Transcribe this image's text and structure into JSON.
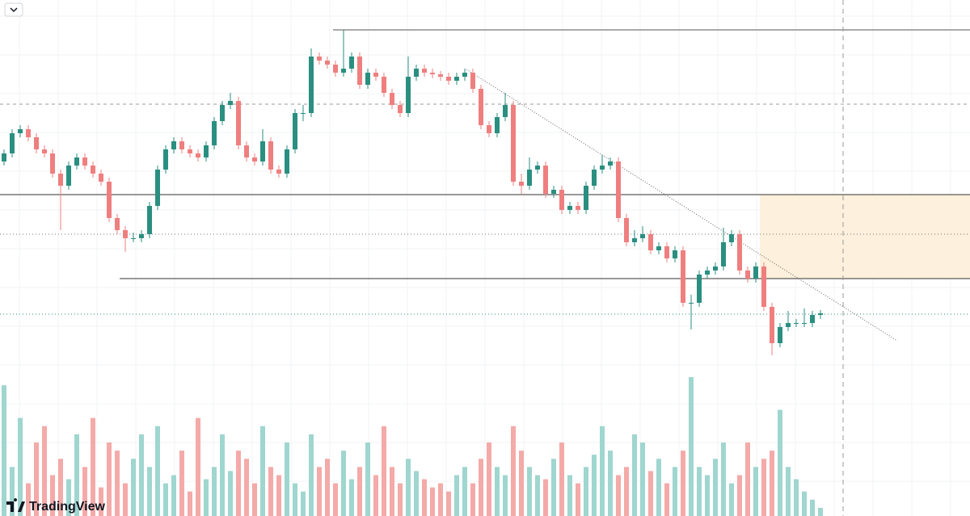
{
  "chart_data": {
    "type": "candlestick",
    "brand": "TradingView",
    "up_color": "#2a8f80",
    "down_color": "#ef7f7f",
    "volume_up_color": "#9fd6cf",
    "volume_down_color": "#f4aaa8",
    "ylim": [
      0,
      460
    ],
    "volume_ylim": [
      0,
      170
    ],
    "grid": true,
    "open": [
      260,
      270,
      295,
      300,
      290,
      275,
      270,
      245,
      230,
      255,
      265,
      255,
      245,
      235,
      190,
      175,
      165,
      165,
      170,
      205,
      250,
      275,
      285,
      275,
      270,
      265,
      280,
      310,
      330,
      335,
      280,
      265,
      260,
      285,
      250,
      245,
      275,
      320,
      320,
      390,
      385,
      380,
      370,
      375,
      390,
      355,
      370,
      365,
      345,
      330,
      320,
      365,
      375,
      370,
      368,
      365,
      360,
      365,
      370,
      350,
      305,
      295,
      315,
      330,
      235,
      230,
      250,
      255,
      220,
      225,
      200,
      205,
      200,
      230,
      250,
      255,
      260,
      190,
      160,
      165,
      170,
      150,
      155,
      140,
      150,
      85,
      85,
      120,
      125,
      130,
      160,
      170,
      125,
      115,
      130,
      80,
      35,
      55,
      60,
      60,
      60,
      70
    ],
    "high": [
      275,
      300,
      305,
      305,
      295,
      280,
      275,
      250,
      260,
      270,
      270,
      260,
      250,
      240,
      195,
      180,
      172,
      175,
      210,
      255,
      280,
      290,
      290,
      280,
      275,
      285,
      315,
      335,
      345,
      340,
      285,
      270,
      300,
      290,
      255,
      280,
      325,
      330,
      400,
      395,
      390,
      385,
      423,
      395,
      395,
      375,
      375,
      370,
      350,
      335,
      390,
      380,
      380,
      375,
      372,
      370,
      370,
      375,
      375,
      355,
      310,
      320,
      345,
      335,
      245,
      265,
      260,
      260,
      230,
      230,
      210,
      210,
      235,
      255,
      268,
      265,
      265,
      195,
      175,
      180,
      175,
      160,
      160,
      155,
      155,
      95,
      125,
      130,
      135,
      178,
      175,
      175,
      130,
      135,
      135,
      85,
      60,
      75,
      65,
      78,
      75,
      76
    ],
    "low": [
      255,
      265,
      290,
      285,
      270,
      265,
      240,
      175,
      225,
      250,
      250,
      240,
      230,
      185,
      170,
      148,
      160,
      160,
      165,
      200,
      245,
      270,
      270,
      265,
      260,
      260,
      275,
      305,
      325,
      275,
      260,
      255,
      255,
      245,
      240,
      240,
      270,
      310,
      315,
      380,
      375,
      365,
      365,
      370,
      350,
      350,
      360,
      340,
      325,
      315,
      315,
      360,
      365,
      363,
      360,
      355,
      355,
      360,
      345,
      300,
      290,
      290,
      310,
      230,
      220,
      225,
      245,
      215,
      215,
      195,
      195,
      195,
      195,
      225,
      245,
      250,
      185,
      155,
      155,
      160,
      145,
      145,
      135,
      135,
      80,
      52,
      80,
      115,
      120,
      125,
      155,
      120,
      110,
      110,
      75,
      20,
      30,
      50,
      55,
      55,
      55,
      65
    ],
    "close": [
      270,
      295,
      300,
      290,
      275,
      270,
      245,
      230,
      255,
      265,
      255,
      245,
      235,
      190,
      175,
      165,
      165,
      170,
      205,
      250,
      275,
      285,
      275,
      270,
      265,
      280,
      310,
      330,
      335,
      280,
      265,
      260,
      285,
      250,
      245,
      275,
      320,
      320,
      390,
      385,
      380,
      370,
      375,
      390,
      355,
      370,
      365,
      345,
      330,
      320,
      365,
      375,
      370,
      368,
      365,
      360,
      365,
      370,
      350,
      305,
      295,
      315,
      330,
      235,
      230,
      250,
      255,
      220,
      225,
      200,
      205,
      200,
      230,
      250,
      255,
      260,
      190,
      160,
      165,
      170,
      150,
      155,
      140,
      150,
      85,
      85,
      120,
      125,
      130,
      160,
      170,
      125,
      115,
      130,
      80,
      35,
      55,
      60,
      60,
      60,
      70,
      72
    ],
    "volume": [
      160,
      60,
      120,
      40,
      90,
      110,
      50,
      70,
      45,
      100,
      60,
      120,
      35,
      90,
      80,
      40,
      70,
      100,
      60,
      110,
      40,
      50,
      80,
      30,
      120,
      45,
      60,
      100,
      55,
      80,
      70,
      40,
      110,
      60,
      50,
      90,
      40,
      30,
      100,
      60,
      70,
      40,
      80,
      45,
      60,
      90,
      50,
      110,
      60,
      40,
      70,
      55,
      45,
      35,
      40,
      30,
      50,
      60,
      40,
      70,
      90,
      60,
      50,
      110,
      80,
      60,
      50,
      45,
      70,
      90,
      50,
      40,
      60,
      75,
      110,
      80,
      50,
      60,
      100,
      90,
      55,
      70,
      40,
      60,
      80,
      170,
      60,
      50,
      70,
      90,
      40,
      50,
      90,
      60,
      70,
      80,
      130,
      60,
      45,
      30,
      20,
      10
    ]
  }
}
